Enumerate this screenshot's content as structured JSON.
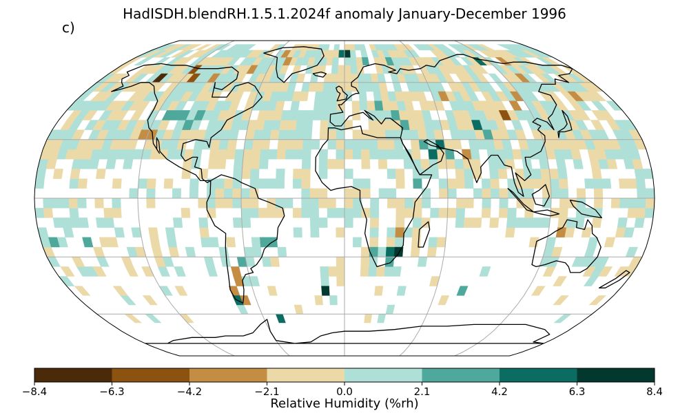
{
  "title": "HadISDH.blendRH.1.5.1.2024f anomaly January-December 1996",
  "panel_label": "c)",
  "colorbar": {
    "label": "Relative Humidity (%rh)",
    "ticks": [
      "−8.4",
      "−6.3",
      "−4.2",
      "−2.1",
      "0.0",
      "2.1",
      "4.2",
      "6.3",
      "8.4"
    ],
    "colors": [
      "#4a2a08",
      "#8c520f",
      "#c48d44",
      "#ecd9a8",
      "#afe0d8",
      "#4fa89c",
      "#0b6d62",
      "#03382f"
    ]
  },
  "map": {
    "projection": "Robinson",
    "background": "#ffffff",
    "grid_color": "#aaaaaa",
    "coast_color": "#000000"
  },
  "chart_data": {
    "type": "heatmap",
    "title": "HadISDH.blendRH.1.5.1.2024f anomaly January-December 1996",
    "colorbar_label": "Relative Humidity (%rh)",
    "colorbar_range": [
      -8.4,
      8.4
    ],
    "colorbar_levels": [
      -8.4,
      -6.3,
      -4.2,
      -2.1,
      0.0,
      2.1,
      4.2,
      6.3,
      8.4
    ],
    "cells": [
      {
        "lon": -52.5,
        "lat": 77.5,
        "value": -3.0
      },
      {
        "lon": -47.5,
        "lat": 72.5,
        "value": -3.0
      },
      {
        "lon": -2.5,
        "lat": 77.5,
        "value": 6.0
      },
      {
        "lon": 2.5,
        "lat": 77.5,
        "value": 7.5
      },
      {
        "lon": 17.5,
        "lat": 72.5,
        "value": 3.0
      },
      {
        "lon": 37.5,
        "lat": 72.5,
        "value": 2.5
      },
      {
        "lon": 62.5,
        "lat": 72.5,
        "value": -1.5
      },
      {
        "lon": 112.5,
        "lat": 72.5,
        "value": 5.0
      },
      {
        "lon": 132.5,
        "lat": 72.5,
        "value": -3.0
      },
      {
        "lon": -137.5,
        "lat": 62.5,
        "value": -6.5
      },
      {
        "lon": -117.5,
        "lat": 67.5,
        "value": -5.0
      },
      {
        "lon": -112.5,
        "lat": 62.5,
        "value": -5.0
      },
      {
        "lon": -97.5,
        "lat": 62.5,
        "value": -3.0
      },
      {
        "lon": -72.5,
        "lat": 67.5,
        "value": -3.0
      },
      {
        "lon": -67.5,
        "lat": 57.5,
        "value": -1.5
      },
      {
        "lon": 67.5,
        "lat": 52.5,
        "value": -3.0
      },
      {
        "lon": 102.5,
        "lat": 42.5,
        "value": -5.0
      },
      {
        "lon": 112.5,
        "lat": 47.5,
        "value": -3.0
      },
      {
        "lon": 117.5,
        "lat": 52.5,
        "value": -3.0
      },
      {
        "lon": 132.5,
        "lat": 62.5,
        "value": -3.0
      },
      {
        "lon": 157.5,
        "lat": 52.5,
        "value": -3.0
      },
      {
        "lon": 172.5,
        "lat": 57.5,
        "value": -1.5
      },
      {
        "lon": -112.5,
        "lat": 42.5,
        "value": 3.0
      },
      {
        "lon": -107.5,
        "lat": 42.5,
        "value": 3.0
      },
      {
        "lon": -102.5,
        "lat": 42.5,
        "value": 3.0
      },
      {
        "lon": -97.5,
        "lat": 37.5,
        "value": 3.0
      },
      {
        "lon": -92.5,
        "lat": 42.5,
        "value": 3.0
      },
      {
        "lon": -117.5,
        "lat": 32.5,
        "value": -3.0
      },
      {
        "lon": -122.5,
        "lat": 32.5,
        "value": -3.0
      },
      {
        "lon": 2.5,
        "lat": 52.5,
        "value": 1.0
      },
      {
        "lon": 22.5,
        "lat": 47.5,
        "value": 3.0
      },
      {
        "lon": 32.5,
        "lat": 42.5,
        "value": 3.0
      },
      {
        "lon": 37.5,
        "lat": 37.5,
        "value": 3.0
      },
      {
        "lon": 47.5,
        "lat": 27.5,
        "value": 3.0
      },
      {
        "lon": 52.5,
        "lat": 22.5,
        "value": 5.0
      },
      {
        "lon": 57.5,
        "lat": 27.5,
        "value": 5.0
      },
      {
        "lon": 62.5,
        "lat": 22.5,
        "value": 3.0
      },
      {
        "lon": 82.5,
        "lat": 37.5,
        "value": 5.0
      },
      {
        "lon": 87.5,
        "lat": 32.5,
        "value": 3.0
      },
      {
        "lon": 72.5,
        "lat": 22.5,
        "value": -3.0
      },
      {
        "lon": 112.5,
        "lat": 22.5,
        "value": 1.0
      },
      {
        "lon": 7.5,
        "lat": 2.5,
        "value": -1.5
      },
      {
        "lon": 27.5,
        "lat": -2.5,
        "value": -1.0
      },
      {
        "lon": 42.5,
        "lat": 7.5,
        "value": 3.0
      },
      {
        "lon": 32.5,
        "lat": -17.5,
        "value": -3.0
      },
      {
        "lon": 22.5,
        "lat": -27.5,
        "value": 1.5
      },
      {
        "lon": 17.5,
        "lat": -27.5,
        "value": 3.0
      },
      {
        "lon": 27.5,
        "lat": -27.5,
        "value": 5.0
      },
      {
        "lon": 32.5,
        "lat": -27.5,
        "value": 7.0
      },
      {
        "lon": 27.5,
        "lat": -32.5,
        "value": 3.0
      },
      {
        "lon": 12.5,
        "lat": -32.5,
        "value": -1.5
      },
      {
        "lon": -2.5,
        "lat": -37.5,
        "value": -1.5
      },
      {
        "lon": -12.5,
        "lat": -37.5,
        "value": 1.5
      },
      {
        "lon": -12.5,
        "lat": -47.5,
        "value": 8.0
      },
      {
        "lon": -42.5,
        "lat": -22.5,
        "value": 3.0
      },
      {
        "lon": -47.5,
        "lat": -22.5,
        "value": 3.0
      },
      {
        "lon": -62.5,
        "lat": -32.5,
        "value": 3.0
      },
      {
        "lon": -67.5,
        "lat": -37.5,
        "value": -3.0
      },
      {
        "lon": -67.5,
        "lat": -42.5,
        "value": -3.0
      },
      {
        "lon": -72.5,
        "lat": -47.5,
        "value": -3.0
      },
      {
        "lon": -72.5,
        "lat": -52.5,
        "value": 5.0
      },
      {
        "lon": -67.5,
        "lat": -52.5,
        "value": -3.0
      },
      {
        "lon": -47.5,
        "lat": -62.5,
        "value": 6.0
      },
      {
        "lon": -172.5,
        "lat": -22.5,
        "value": 3.0
      },
      {
        "lon": -152.5,
        "lat": -22.5,
        "value": 3.0
      },
      {
        "lon": 77.5,
        "lat": -47.5,
        "value": 3.0
      },
      {
        "lon": 127.5,
        "lat": -17.5,
        "value": -3.0
      },
      {
        "lon": 112.5,
        "lat": -22.5,
        "value": -1.5
      }
    ]
  }
}
